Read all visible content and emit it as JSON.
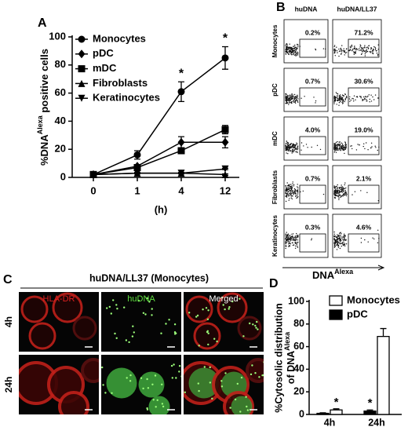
{
  "chart_data": [
    {
      "type": "line",
      "panel": "A",
      "ylabel_parts": [
        "%DNA",
        "Alexa",
        " positive cells"
      ],
      "xlabel": "(h)",
      "categories": [
        "0",
        "1",
        "4",
        "12"
      ],
      "ylim": [
        0,
        100
      ],
      "yticks": [
        0,
        20,
        40,
        60,
        80,
        100
      ],
      "series": [
        {
          "name": "Monocytes",
          "marker": "circle",
          "color": "#000000",
          "values": [
            2,
            16,
            61,
            85
          ],
          "errors": [
            1,
            3,
            7,
            8
          ]
        },
        {
          "name": "pDC",
          "marker": "diamond",
          "color": "#000000",
          "values": [
            2,
            8,
            25,
            25
          ],
          "errors": [
            1,
            1,
            4,
            4
          ]
        },
        {
          "name": "mDC",
          "marker": "square",
          "color": "#000000",
          "values": [
            2,
            7,
            19,
            34
          ],
          "errors": [
            1,
            1,
            2,
            3
          ]
        },
        {
          "name": "Fibroblasts",
          "marker": "triangle-up",
          "color": "#000000",
          "values": [
            2,
            3,
            3,
            2
          ],
          "errors": [
            0.5,
            0.5,
            0.5,
            0.5
          ]
        },
        {
          "name": "Keratinocytes",
          "marker": "triangle-down",
          "color": "#000000",
          "values": [
            2,
            3,
            3,
            6
          ],
          "errors": [
            0.5,
            0.5,
            0.5,
            0.5
          ]
        }
      ],
      "annotations": [
        {
          "text": "*",
          "category": "4"
        },
        {
          "text": "*",
          "category": "12"
        }
      ]
    },
    {
      "type": "bar",
      "panel": "D",
      "ylabel_parts": [
        "%Cytosolic distribution",
        "of DNA",
        "Alexa"
      ],
      "categories": [
        "4h",
        "24h"
      ],
      "ylim": [
        0,
        100
      ],
      "yticks": [
        0,
        20,
        40,
        60,
        80,
        100
      ],
      "series": [
        {
          "name": "Monocytes",
          "color": "#ffffff",
          "values": [
            4,
            69
          ],
          "errors": [
            1,
            7
          ]
        },
        {
          "name": "pDC",
          "color": "#000000",
          "values": [
            1,
            3
          ],
          "errors": [
            0.5,
            1
          ]
        }
      ],
      "annotations": [
        {
          "text": "*",
          "category": "4h",
          "series": "Monocytes"
        },
        {
          "text": "*",
          "category": "24h",
          "series": "pDC"
        }
      ]
    }
  ],
  "flow": {
    "panel": "B",
    "columns": [
      "huDNA",
      "huDNA/LL37"
    ],
    "rows": [
      {
        "label": "Monocytes",
        "percents": [
          "0.2%",
          "71.2%"
        ]
      },
      {
        "label": "pDC",
        "percents": [
          "0.7%",
          "30.6%"
        ]
      },
      {
        "label": "mDC",
        "percents": [
          "4.0%",
          "19.0%"
        ]
      },
      {
        "label": "Fibroblasts",
        "percents": [
          "0.7%",
          "2.1%"
        ]
      },
      {
        "label": "Keratinocytes",
        "percents": [
          "0.3%",
          "4.6%"
        ]
      }
    ],
    "xlabel_parts": [
      "DNA",
      "Alexa"
    ]
  },
  "microscopy": {
    "panel": "C",
    "title": "huDNA/LL37 (Monocytes)",
    "channels": [
      "HLA-DR",
      "huDNA",
      "Merged"
    ],
    "rows": [
      "4h",
      "24h"
    ]
  }
}
